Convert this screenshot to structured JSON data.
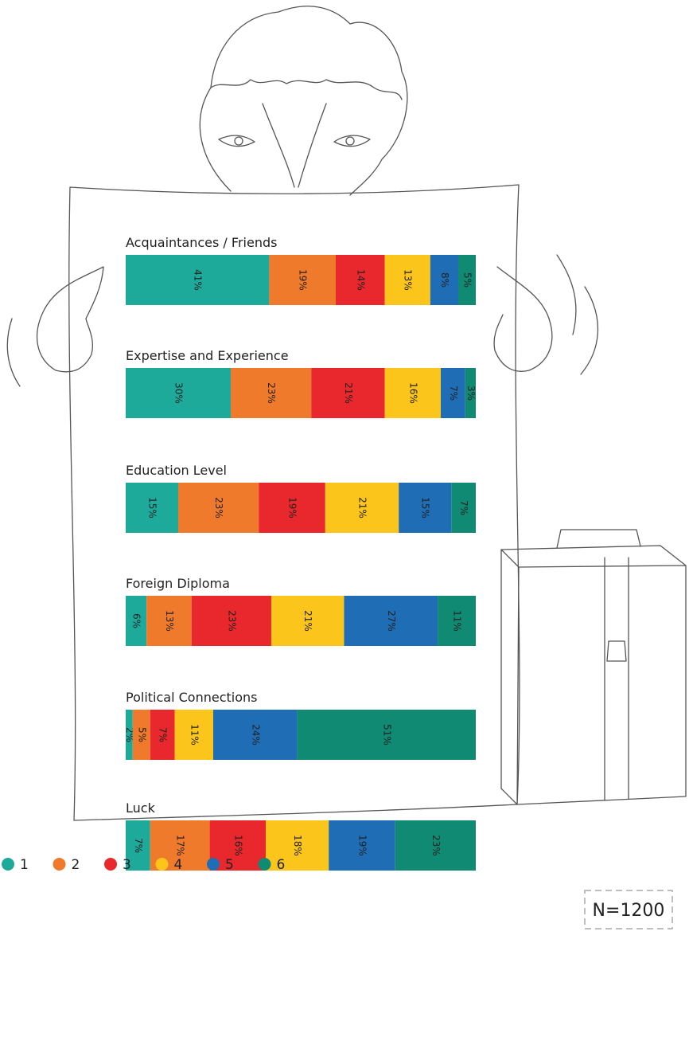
{
  "chart_data": {
    "type": "stacked-bar",
    "orientation": "horizontal",
    "categories": [
      "Acquaintances / Friends",
      "Expertise and Experience",
      "Education Level",
      "Foreign Diploma",
      "Political Connections",
      "Luck"
    ],
    "series": [
      {
        "name": "1",
        "color": "#1eaa9b",
        "values": [
          41,
          30,
          15,
          6,
          2,
          7
        ],
        "value_labels": [
          "41%",
          "30%",
          "15%",
          "6%",
          "2%",
          "7%"
        ]
      },
      {
        "name": "2",
        "color": "#f07a2c",
        "values": [
          19,
          23,
          23,
          13,
          5,
          17
        ],
        "value_labels": [
          "19%",
          "23%",
          "23%",
          "13%",
          "5%",
          "17%"
        ]
      },
      {
        "name": "3",
        "color": "#e8282d",
        "values": [
          14,
          21,
          19,
          23,
          7,
          16
        ],
        "value_labels": [
          "14%",
          "21%",
          "19%",
          "23%",
          "7%",
          "16%"
        ]
      },
      {
        "name": "4",
        "color": "#fcc51c",
        "values": [
          13,
          16,
          21,
          21,
          11,
          18
        ],
        "value_labels": [
          "13%",
          "16%",
          "21%",
          "21%",
          "11%",
          "18%"
        ]
      },
      {
        "name": "5",
        "color": "#1f6db5",
        "values": [
          8,
          7,
          15,
          27,
          24,
          19
        ],
        "value_labels": [
          "8%",
          "7%",
          "15%",
          "27%",
          "24%",
          "19%"
        ]
      },
      {
        "name": "6",
        "color": "#108a73",
        "values": [
          5,
          3,
          7,
          11,
          51,
          23
        ],
        "value_labels": [
          "5%",
          "3%",
          "7%",
          "11%",
          "51%",
          "23%"
        ]
      }
    ],
    "annotation": "N=1200",
    "legend": "bottom-left"
  }
}
